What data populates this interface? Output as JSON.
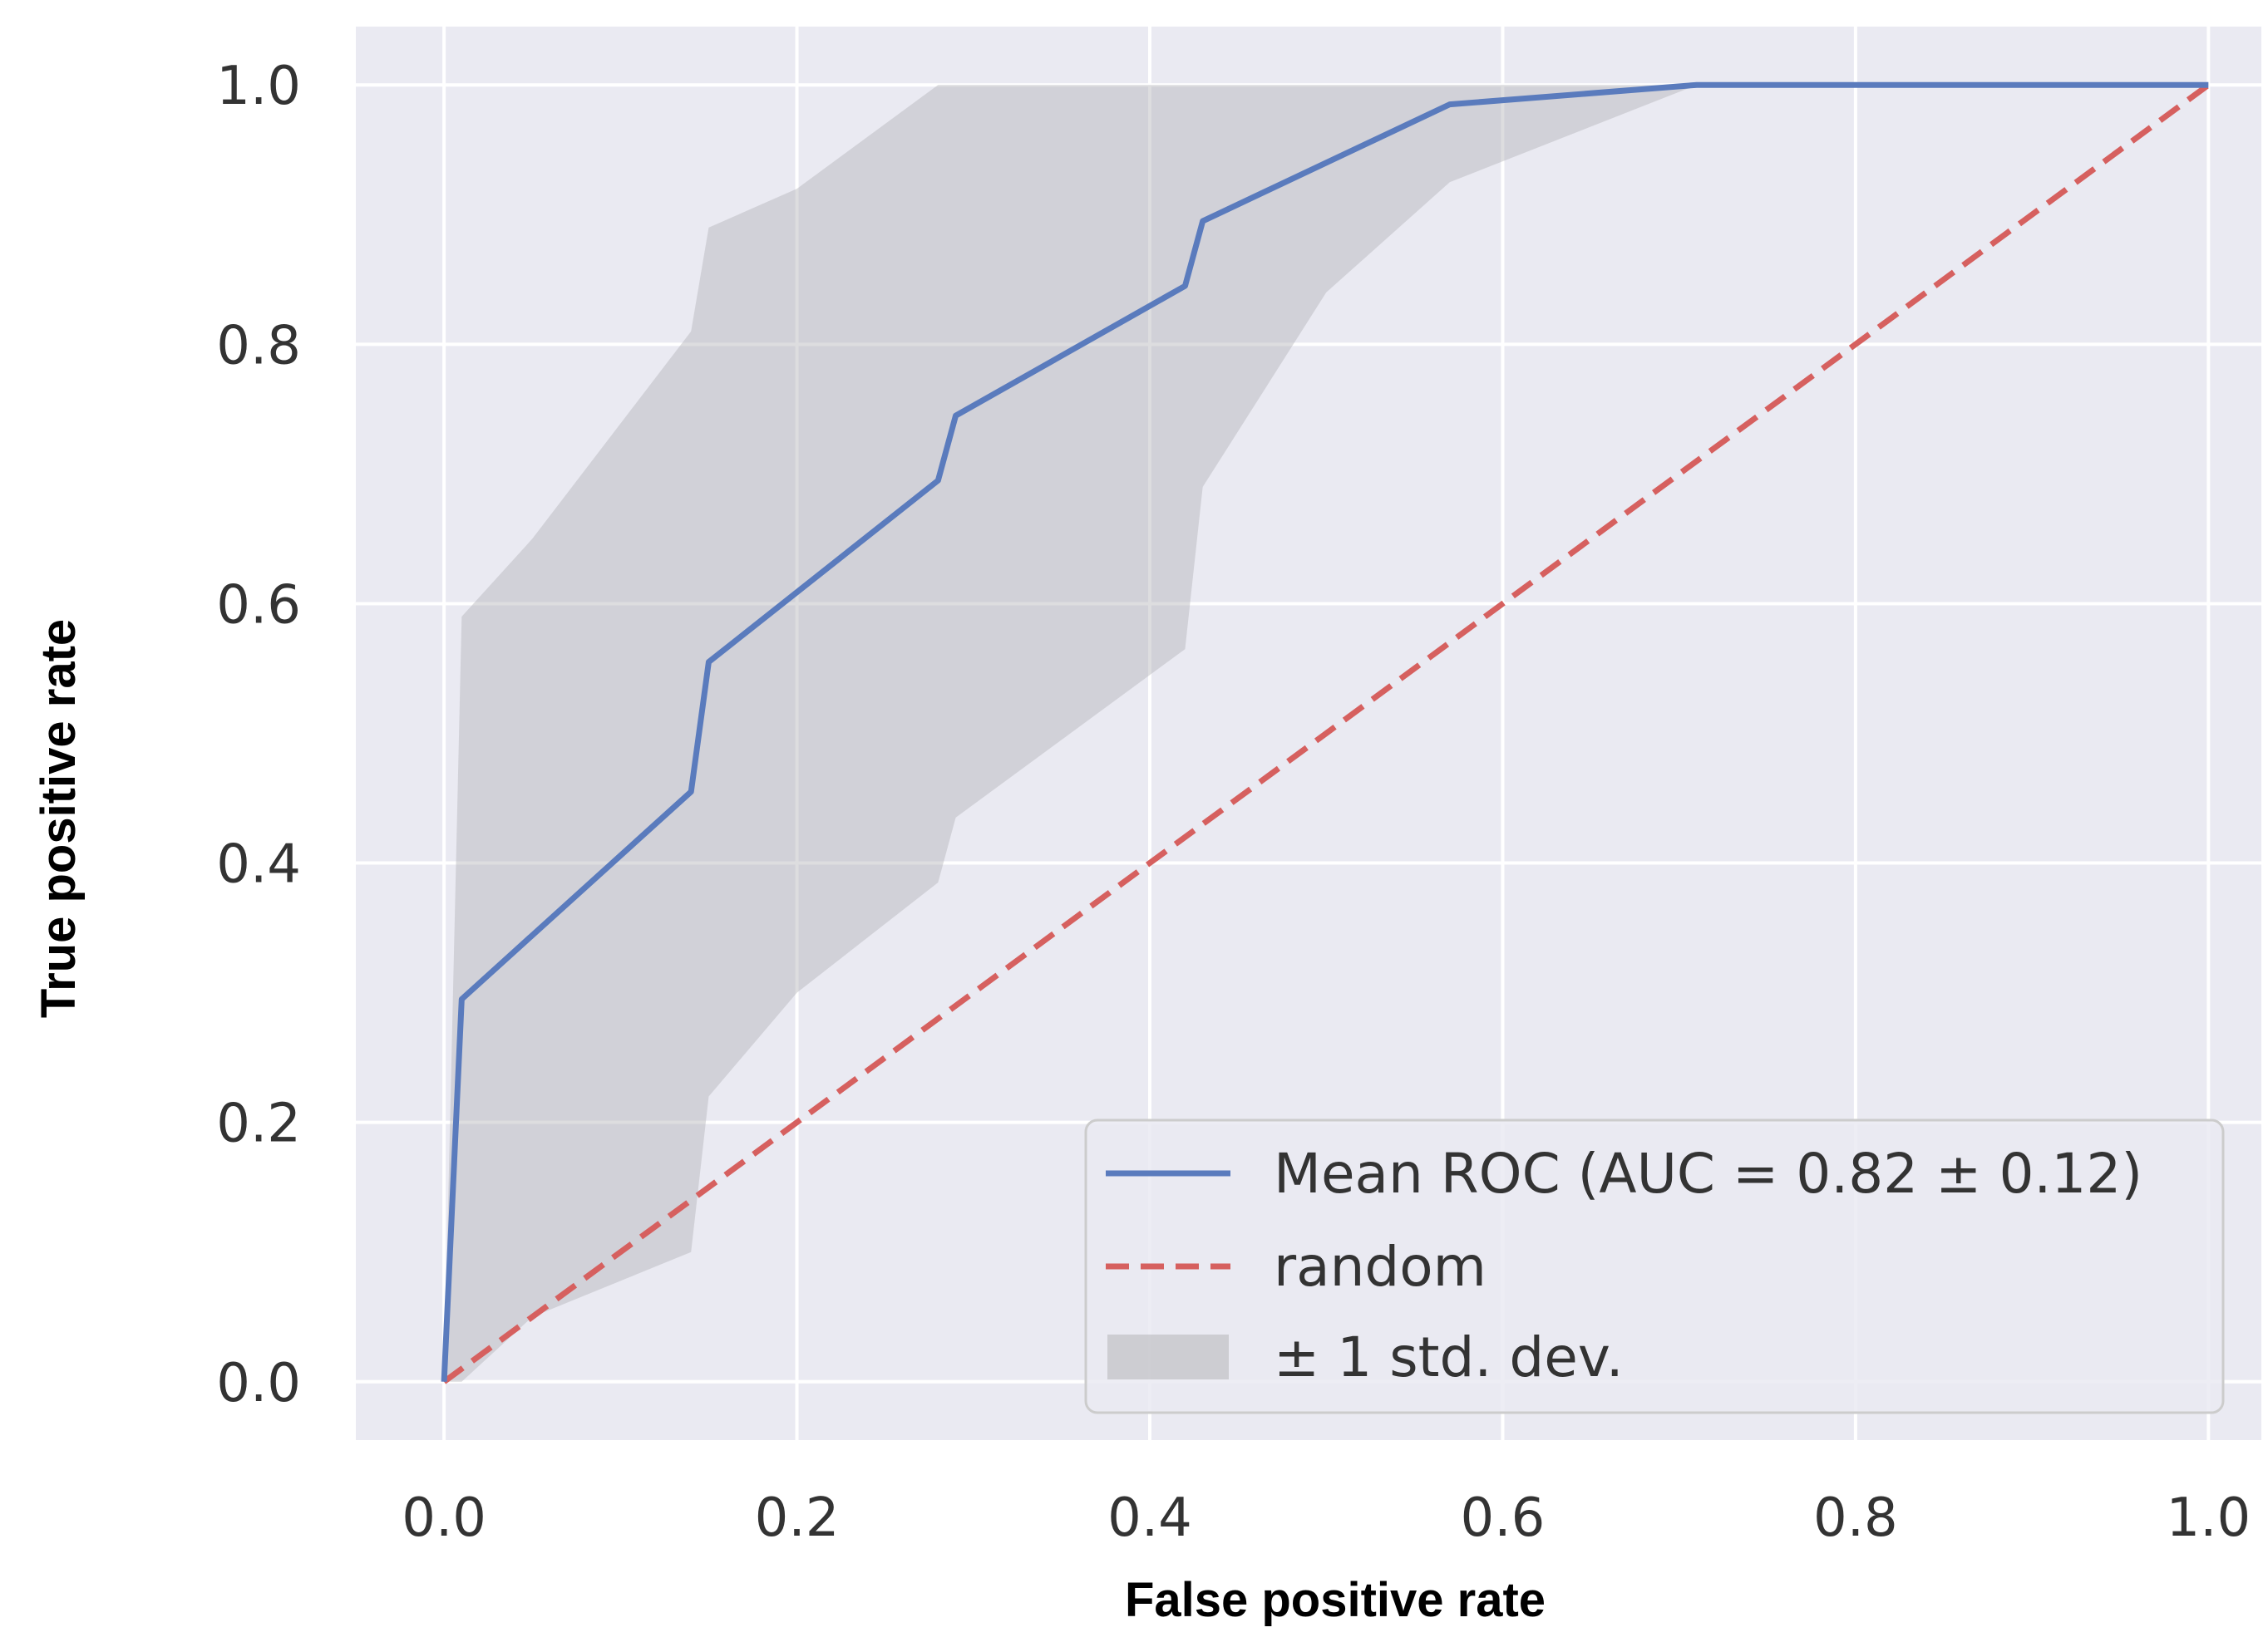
{
  "chart_data": {
    "type": "line",
    "title": "",
    "xlabel": "False positive rate",
    "ylabel": "True positive rate",
    "xlim": [
      -0.05,
      1.03
    ],
    "ylim": [
      -0.045,
      1.045
    ],
    "xticks": [
      0.0,
      0.2,
      0.4,
      0.6,
      0.8,
      1.0
    ],
    "yticks": [
      0.0,
      0.2,
      0.4,
      0.6,
      0.8,
      1.0
    ],
    "xtick_labels": [
      "0.0",
      "0.2",
      "0.4",
      "0.6",
      "0.8",
      "1.0"
    ],
    "ytick_labels": [
      "0.0",
      "0.2",
      "0.4",
      "0.6",
      "0.8",
      "1.0"
    ],
    "grid": true,
    "legend_position": "bottom-right",
    "colors": {
      "background": "#eaeaf2",
      "grid": "#ffffff",
      "mean_roc": "#5a7bbd",
      "random": "#d6605f",
      "band": "#b4b4b8"
    },
    "series": [
      {
        "name": "Mean ROC (AUC = 0.82 ± 0.12)",
        "style": "solid",
        "x": [
          0.0,
          0.01,
          0.14,
          0.15,
          0.28,
          0.29,
          0.42,
          0.43,
          0.57,
          0.71,
          1.0
        ],
        "y": [
          0.0,
          0.295,
          0.455,
          0.555,
          0.695,
          0.745,
          0.845,
          0.895,
          0.985,
          1.0,
          1.0
        ]
      },
      {
        "name": "random",
        "style": "dashed",
        "x": [
          0.0,
          1.0
        ],
        "y": [
          0.0,
          1.0
        ]
      }
    ],
    "band": {
      "name": "± 1 std. dev.",
      "x": [
        0.0,
        0.01,
        0.05,
        0.14,
        0.15,
        0.2,
        0.28,
        0.29,
        0.42,
        0.43,
        0.5,
        0.57,
        0.71,
        1.0
      ],
      "upper": [
        0.0,
        0.59,
        0.65,
        0.81,
        0.89,
        0.92,
        1.0,
        1.0,
        1.0,
        1.0,
        1.0,
        1.0,
        1.0,
        1.0
      ],
      "lower": [
        0.0,
        0.0,
        0.05,
        0.1,
        0.22,
        0.3,
        0.385,
        0.435,
        0.565,
        0.69,
        0.84,
        0.925,
        1.0,
        1.0
      ]
    },
    "legend": [
      {
        "label": "Mean ROC (AUC = 0.82 ± 0.12)",
        "kind": "solid"
      },
      {
        "label": "random",
        "kind": "dashed"
      },
      {
        "label": "± 1 std. dev.",
        "kind": "patch"
      }
    ]
  }
}
